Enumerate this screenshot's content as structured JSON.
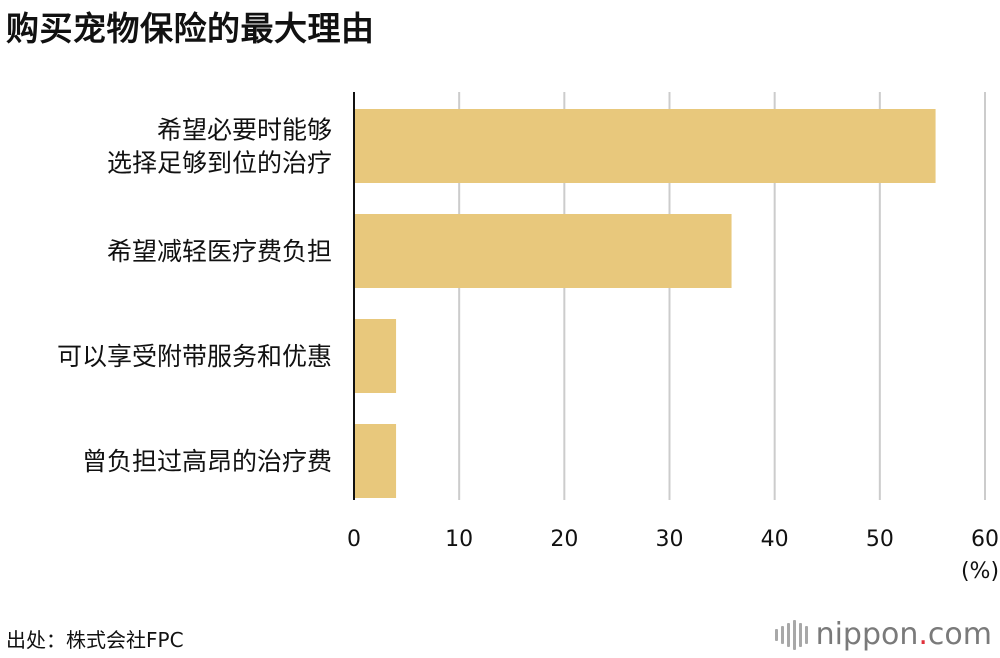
{
  "chart_data": {
    "type": "bar",
    "orientation": "horizontal",
    "title": "购买宠物保险的最大理由",
    "categories": [
      [
        "希望必要时能够",
        "选择足够到位的治疗"
      ],
      [
        "希望减轻医疗费负担"
      ],
      [
        "可以享受附带服务和优惠"
      ],
      [
        "曾负担过高昂的治疗费"
      ]
    ],
    "values": [
      55.3,
      35.9,
      4.0,
      4.0
    ],
    "xlim": [
      0,
      60
    ],
    "xticks": [
      "0",
      "10",
      "20",
      "30",
      "40",
      "50",
      "60"
    ],
    "unit": "(%)",
    "grid": true,
    "bar_color": "#e8c87c",
    "grid_color": "#cccccc",
    "axis_color": "#111111"
  },
  "source": "出处：株式会社FPC",
  "logo": {
    "icon": "nippon-bars-icon",
    "text": "nippon",
    "dot": ".",
    "suffix": "com",
    "text_color": "#7a7a7a",
    "dot_color": "#e0313b"
  }
}
